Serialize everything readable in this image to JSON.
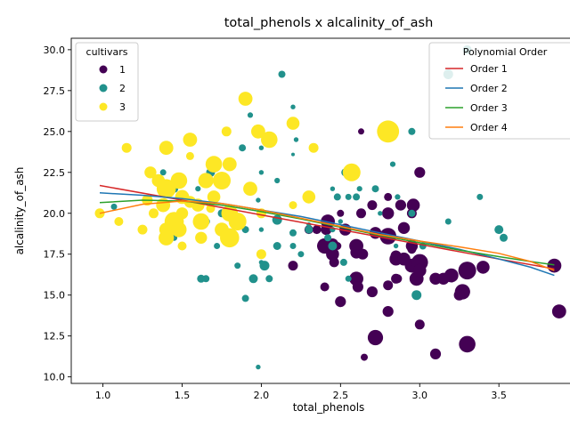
{
  "chart_data": {
    "type": "scatter",
    "title": "total_phenols x alcalinity_of_ash",
    "xlabel": "total_phenols",
    "ylabel": "alcalinity_of_ash",
    "xlim": [
      0.8,
      4.05
    ],
    "ylim": [
      9.6,
      30.7
    ],
    "xticks": [
      1.0,
      1.5,
      2.0,
      2.5,
      3.0,
      3.5,
      4.0
    ],
    "yticks": [
      10.0,
      12.5,
      15.0,
      17.5,
      20.0,
      22.5,
      25.0,
      27.5,
      30.0
    ],
    "grid": false,
    "legends": [
      {
        "title": "cultivars",
        "placement": "top-left",
        "entries": [
          {
            "label": "1",
            "color": "#440154"
          },
          {
            "label": "2",
            "color": "#21918c"
          },
          {
            "label": "3",
            "color": "#fde725"
          }
        ]
      },
      {
        "title": "Polynomial Order",
        "placement": "top-right",
        "entries": [
          {
            "label": "Order 1",
            "color": "#d62728"
          },
          {
            "label": "Order 2",
            "color": "#1f77b4"
          },
          {
            "label": "Order 3",
            "color": "#2ca02c"
          },
          {
            "label": "Order 4",
            "color": "#ff7f0e"
          }
        ]
      }
    ],
    "fit_lines": [
      {
        "label": "Order 1",
        "color": "#d62728",
        "x": [
          0.98,
          1.5,
          2.0,
          2.5,
          3.0,
          3.5,
          3.85
        ],
        "y": [
          21.7,
          20.8,
          19.9,
          19.0,
          18.1,
          17.2,
          16.6
        ]
      },
      {
        "label": "Order 2",
        "color": "#1f77b4",
        "x": [
          0.98,
          1.25,
          1.5,
          1.75,
          2.0,
          2.25,
          2.5,
          2.75,
          3.0,
          3.25,
          3.5,
          3.7,
          3.85
        ],
        "y": [
          21.25,
          21.1,
          20.9,
          20.6,
          20.2,
          19.8,
          19.3,
          18.8,
          18.3,
          17.8,
          17.2,
          16.7,
          16.2
        ]
      },
      {
        "label": "Order 3",
        "color": "#2ca02c",
        "x": [
          0.98,
          1.25,
          1.5,
          1.75,
          2.0,
          2.25,
          2.5,
          2.75,
          3.0,
          3.25,
          3.5,
          3.7,
          3.85
        ],
        "y": [
          20.65,
          20.8,
          20.75,
          20.5,
          20.1,
          19.65,
          19.15,
          18.65,
          18.2,
          17.75,
          17.35,
          17.05,
          16.85
        ]
      },
      {
        "label": "Order 4",
        "color": "#ff7f0e",
        "x": [
          0.98,
          1.25,
          1.5,
          1.75,
          2.0,
          2.25,
          2.5,
          2.75,
          3.0,
          3.25,
          3.5,
          3.7,
          3.85
        ],
        "y": [
          20.0,
          20.55,
          20.75,
          20.6,
          20.2,
          19.7,
          19.2,
          18.7,
          18.3,
          17.95,
          17.55,
          17.05,
          16.5
        ]
      }
    ],
    "series": [
      {
        "name": "1",
        "color": "#440154",
        "points": [
          [
            2.8,
            15.6,
            1
          ],
          [
            2.65,
            11.2,
            0.85
          ],
          [
            2.8,
            18.6,
            1.3
          ],
          [
            3.85,
            16.8,
            1.2
          ],
          [
            2.8,
            21.0,
            0.9
          ],
          [
            3.27,
            15.2,
            1.25
          ],
          [
            2.5,
            14.6,
            1.05
          ],
          [
            2.6,
            17.6,
            1.1
          ],
          [
            2.8,
            14.0,
            1.05
          ],
          [
            2.98,
            16.0,
            1.2
          ],
          [
            2.95,
            18.0,
            1.1
          ],
          [
            2.2,
            16.8,
            1.0
          ],
          [
            2.6,
            16.0,
            1.2
          ],
          [
            3.1,
            11.4,
            1.05
          ],
          [
            3.3,
            12.0,
            1.3
          ],
          [
            2.85,
            17.2,
            1.15
          ],
          [
            2.8,
            20.0,
            1.1
          ],
          [
            2.95,
            20.0,
            1.0
          ],
          [
            3.3,
            16.5,
            1.35
          ],
          [
            2.7,
            15.2,
            1.05
          ],
          [
            3.0,
            13.2,
            1.0
          ],
          [
            2.41,
            19.0,
            1.05
          ],
          [
            2.61,
            15.5,
            1.05
          ],
          [
            2.48,
            18.0,
            0.9
          ],
          [
            2.53,
            19.0,
            1.1
          ],
          [
            2.63,
            25.0,
            0.8
          ],
          [
            2.85,
            16.0,
            1.0
          ],
          [
            2.4,
            18.0,
            1.25
          ],
          [
            2.95,
            16.8,
            1.2
          ],
          [
            3.0,
            17.0,
            1.3
          ],
          [
            2.86,
            16.0,
            0.95
          ],
          [
            3.25,
            15.0,
            1.05
          ],
          [
            2.72,
            12.4,
            1.25
          ],
          [
            2.45,
            18.1,
            1.1
          ],
          [
            2.88,
            20.5,
            1.05
          ],
          [
            2.45,
            17.5,
            1.15
          ],
          [
            3.88,
            14.0,
            1.2
          ],
          [
            2.96,
            20.5,
            1.15
          ],
          [
            2.63,
            20.0,
            1.0
          ],
          [
            2.85,
            17.4,
            1.05
          ],
          [
            3.2,
            16.2,
            1.2
          ],
          [
            3.0,
            22.5,
            1.05
          ],
          [
            2.42,
            19.5,
            1.2
          ],
          [
            2.95,
            17.8,
            0.95
          ],
          [
            3.4,
            16.7,
            1.15
          ],
          [
            2.8,
            18.5,
            0.95
          ],
          [
            2.7,
            20.5,
            1.0
          ],
          [
            2.6,
            18.0,
            1.2
          ],
          [
            3.1,
            16.0,
            1.1
          ],
          [
            2.46,
            17.0,
            1.0
          ],
          [
            2.72,
            18.8,
            1.1
          ],
          [
            2.64,
            17.5,
            1.05
          ],
          [
            2.35,
            19.0,
            0.95
          ],
          [
            2.4,
            15.5,
            0.95
          ],
          [
            2.3,
            19.0,
            0.95
          ],
          [
            3.15,
            16.0,
            1.1
          ],
          [
            2.9,
            19.1,
            1.1
          ],
          [
            2.9,
            17.2,
            1.15
          ],
          [
            3.0,
            16.5,
            1.15
          ],
          [
            2.5,
            20.0,
            0.85
          ]
        ]
      },
      {
        "name": "2",
        "color": "#21918c",
        "points": [
          [
            3.3,
            30.0,
            0.95
          ],
          [
            3.18,
            28.5,
            1.0
          ],
          [
            2.13,
            28.5,
            0.85
          ],
          [
            2.2,
            26.5,
            0.7
          ],
          [
            1.93,
            26.0,
            0.75
          ],
          [
            2.95,
            25.0,
            0.85
          ],
          [
            2.22,
            24.5,
            0.7
          ],
          [
            1.88,
            24.0,
            0.85
          ],
          [
            2.0,
            24.0,
            0.7
          ],
          [
            2.2,
            23.6,
            0.6
          ],
          [
            2.83,
            23.0,
            0.75
          ],
          [
            1.68,
            22.5,
            0.95
          ],
          [
            2.0,
            22.5,
            0.7
          ],
          [
            2.53,
            22.5,
            0.9
          ],
          [
            1.38,
            22.5,
            0.8
          ],
          [
            2.1,
            22.0,
            0.75
          ],
          [
            2.72,
            21.5,
            0.85
          ],
          [
            2.45,
            21.5,
            0.7
          ],
          [
            1.6,
            21.5,
            0.75
          ],
          [
            2.62,
            21.5,
            0.75
          ],
          [
            2.48,
            21.0,
            0.85
          ],
          [
            2.55,
            21.0,
            0.8
          ],
          [
            2.6,
            21.0,
            0.85
          ],
          [
            2.86,
            21.0,
            0.75
          ],
          [
            3.38,
            21.0,
            0.8
          ],
          [
            1.98,
            20.8,
            0.7
          ],
          [
            2.2,
            20.5,
            0.8
          ],
          [
            1.07,
            20.4,
            0.8
          ],
          [
            1.75,
            20.0,
            0.9
          ],
          [
            2.75,
            20.0,
            0.7
          ],
          [
            2.95,
            20.0,
            0.85
          ],
          [
            1.65,
            19.5,
            0.9
          ],
          [
            2.1,
            19.6,
            1.0
          ],
          [
            2.5,
            19.5,
            0.7
          ],
          [
            3.18,
            19.5,
            0.8
          ],
          [
            1.9,
            19.0,
            0.85
          ],
          [
            2.0,
            19.0,
            0.7
          ],
          [
            2.3,
            19.0,
            0.9
          ],
          [
            2.45,
            19.0,
            0.75
          ],
          [
            3.5,
            19.0,
            0.95
          ],
          [
            2.2,
            18.8,
            0.85
          ],
          [
            1.45,
            18.5,
            0.8
          ],
          [
            2.42,
            18.5,
            0.85
          ],
          [
            3.53,
            18.5,
            0.9
          ],
          [
            1.72,
            18.0,
            0.8
          ],
          [
            2.1,
            18.0,
            0.9
          ],
          [
            2.2,
            18.0,
            0.8
          ],
          [
            2.85,
            18.0,
            0.7
          ],
          [
            3.02,
            18.0,
            0.85
          ],
          [
            2.45,
            18.0,
            0.95
          ],
          [
            2.25,
            17.5,
            0.8
          ],
          [
            2.0,
            17.0,
            0.7
          ],
          [
            2.52,
            17.0,
            0.85
          ],
          [
            1.85,
            16.8,
            0.8
          ],
          [
            2.02,
            16.8,
            1.0
          ],
          [
            1.62,
            16.0,
            0.9
          ],
          [
            1.95,
            16.0,
            0.95
          ],
          [
            2.05,
            16.0,
            0.85
          ],
          [
            1.65,
            16.0,
            0.85
          ],
          [
            2.55,
            16.0,
            0.8
          ],
          [
            2.98,
            15.0,
            1.0
          ],
          [
            1.9,
            14.8,
            0.85
          ],
          [
            1.98,
            10.6,
            0.7
          ],
          [
            1.45,
            21.5,
            0.9
          ],
          [
            2.3,
            19.3,
            0.7
          ]
        ]
      },
      {
        "name": "3",
        "color": "#fde725",
        "points": [
          [
            1.15,
            24.0,
            1.0
          ],
          [
            1.4,
            24.0,
            1.2
          ],
          [
            1.55,
            24.5,
            1.2
          ],
          [
            1.78,
            25.0,
            1.0
          ],
          [
            1.9,
            27.0,
            1.2
          ],
          [
            2.2,
            25.5,
            1.15
          ],
          [
            1.98,
            25.0,
            1.2
          ],
          [
            2.05,
            24.5,
            1.3
          ],
          [
            2.33,
            24.0,
            1.0
          ],
          [
            1.55,
            23.5,
            0.9
          ],
          [
            1.7,
            23.0,
            1.3
          ],
          [
            1.8,
            23.0,
            1.2
          ],
          [
            1.3,
            22.5,
            1.1
          ],
          [
            1.35,
            22.0,
            1.15
          ],
          [
            1.48,
            22.0,
            1.3
          ],
          [
            1.4,
            21.5,
            1.4
          ],
          [
            1.65,
            22.0,
            1.25
          ],
          [
            1.75,
            22.0,
            1.35
          ],
          [
            1.5,
            21.0,
            1.2
          ],
          [
            1.93,
            21.5,
            1.2
          ],
          [
            1.7,
            21.0,
            1.15
          ],
          [
            2.3,
            21.0,
            1.15
          ],
          [
            1.38,
            20.5,
            1.2
          ],
          [
            1.6,
            20.5,
            1.15
          ],
          [
            1.8,
            20.0,
            1.3
          ],
          [
            1.32,
            20.0,
            1.0
          ],
          [
            1.5,
            20.0,
            1.1
          ],
          [
            0.98,
            20.0,
            1.0
          ],
          [
            1.1,
            19.5,
            0.95
          ],
          [
            1.45,
            19.5,
            1.4
          ],
          [
            1.62,
            19.5,
            1.3
          ],
          [
            1.4,
            19.0,
            1.2
          ],
          [
            1.25,
            19.0,
            1.0
          ],
          [
            1.85,
            19.5,
            1.35
          ],
          [
            2.0,
            20.0,
            1.0
          ],
          [
            1.75,
            19.0,
            1.2
          ],
          [
            1.48,
            19.0,
            1.25
          ],
          [
            2.0,
            17.5,
            1.0
          ],
          [
            1.62,
            18.5,
            1.1
          ],
          [
            1.8,
            18.5,
            1.4
          ],
          [
            1.4,
            18.5,
            1.25
          ],
          [
            1.5,
            18.0,
            0.95
          ],
          [
            1.55,
            20.7,
            1.1
          ],
          [
            1.68,
            20.3,
            0.95
          ],
          [
            2.2,
            20.5,
            0.9
          ],
          [
            2.57,
            22.5,
            1.35
          ],
          [
            2.8,
            25.0,
            1.5
          ],
          [
            1.28,
            20.8,
            1.05
          ]
        ]
      }
    ]
  }
}
